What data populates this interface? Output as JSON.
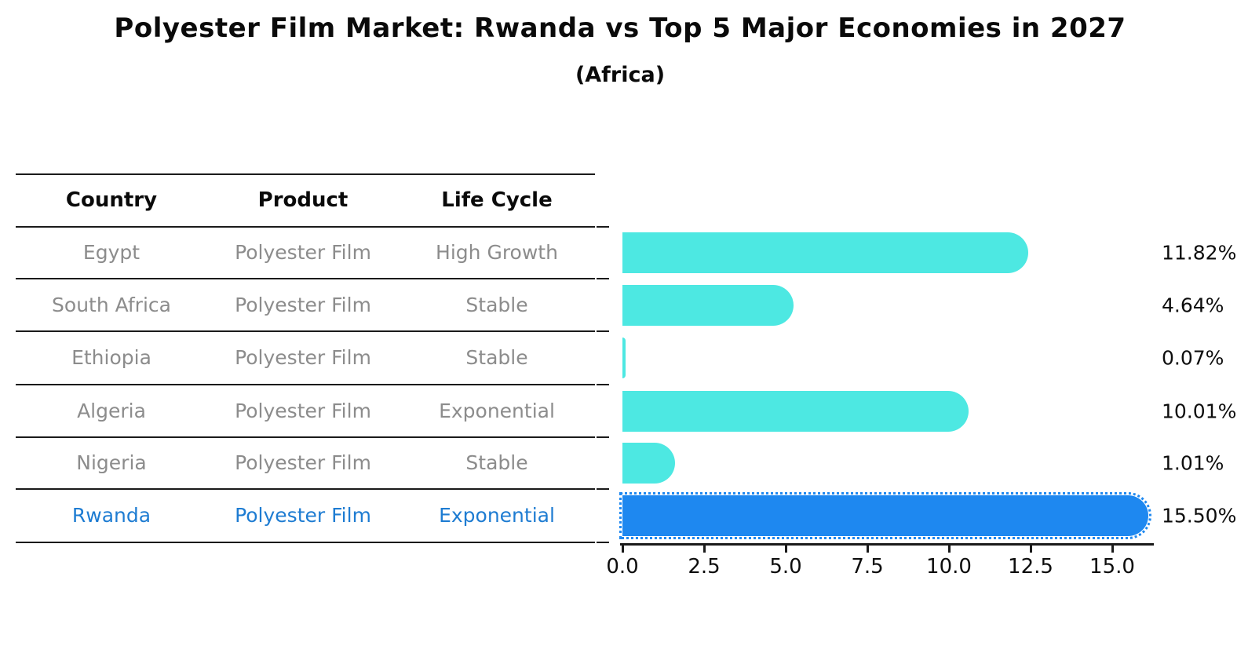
{
  "title": "Polyester Film Market: Rwanda vs Top 5 Major Economies in 2027",
  "subtitle": "(Africa)",
  "table": {
    "columns": [
      "Country",
      "Product",
      "Life Cycle"
    ],
    "rows": [
      {
        "country": "Egypt",
        "product": "Polyester Film",
        "life_cycle": "High Growth",
        "highlight": false
      },
      {
        "country": "South Africa",
        "product": "Polyester Film",
        "life_cycle": "Stable",
        "highlight": false
      },
      {
        "country": "Ethiopia",
        "product": "Polyester Film",
        "life_cycle": "Stable",
        "highlight": false
      },
      {
        "country": "Algeria",
        "product": "Polyester Film",
        "life_cycle": "Exponential",
        "highlight": false
      },
      {
        "country": "Nigeria",
        "product": "Polyester Film",
        "life_cycle": "Stable",
        "highlight": false
      },
      {
        "country": "Rwanda",
        "product": "Polyester Film",
        "life_cycle": "Exponential",
        "highlight": true
      }
    ]
  },
  "chart_data": {
    "type": "bar",
    "orientation": "horizontal",
    "title": "Polyester Film Market: Rwanda vs Top 5 Major Economies in 2027",
    "subtitle": "(Africa)",
    "categories": [
      "Egypt",
      "South Africa",
      "Ethiopia",
      "Algeria",
      "Nigeria",
      "Rwanda"
    ],
    "values": [
      11.82,
      4.64,
      0.07,
      10.01,
      1.01,
      15.5
    ],
    "value_labels": [
      "11.82%",
      "4.64%",
      "0.07%",
      "10.01%",
      "1.01%",
      "15.50%"
    ],
    "xlabel": "",
    "ylabel": "",
    "xlim": [
      0,
      16.3
    ],
    "x_ticks": [
      0.0,
      2.5,
      5.0,
      7.5,
      10.0,
      12.5,
      15.0
    ],
    "x_tick_labels": [
      "0.0",
      "2.5",
      "5.0",
      "7.5",
      "10.0",
      "12.5",
      "15.0"
    ],
    "grid": false,
    "legend": false,
    "highlight_index": 5
  },
  "colors": {
    "bar": "#4DE8E2",
    "highlight_bar": "#1E88F0",
    "highlight_text": "#1E7CD2",
    "table_text": "#8c8c8c",
    "heading_text": "#0a0a0a",
    "line": "#1a1a1a"
  }
}
